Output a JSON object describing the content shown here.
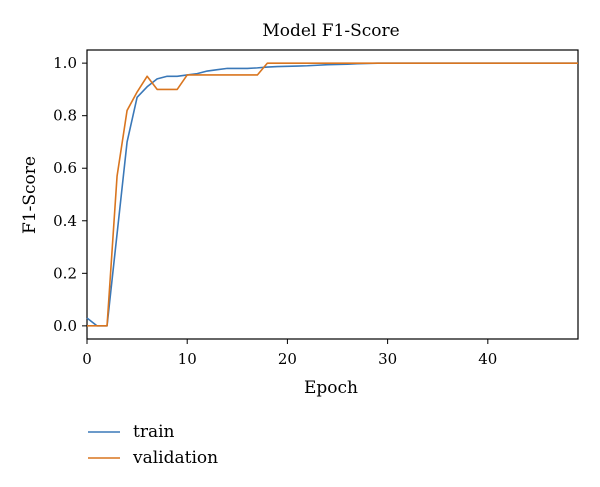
{
  "chart_data": {
    "type": "line",
    "title": "Model F1-Score",
    "xlabel": "Epoch",
    "ylabel": "F1-Score",
    "xlim": [
      0,
      49
    ],
    "ylim": [
      -0.05,
      1.05
    ],
    "xticks": [
      0,
      10,
      20,
      30,
      40
    ],
    "yticks": [
      0.0,
      0.2,
      0.4,
      0.6,
      0.8,
      1.0
    ],
    "xtick_labels": [
      "0",
      "10",
      "20",
      "30",
      "40"
    ],
    "ytick_labels": [
      "0.0",
      "0.2",
      "0.4",
      "0.6",
      "0.8",
      "1.0"
    ],
    "grid": false,
    "legend_position": "below-left",
    "series": [
      {
        "name": "train",
        "color": "#3a78b8",
        "x": [
          0,
          1,
          2,
          3,
          4,
          5,
          6,
          7,
          8,
          9,
          10,
          11,
          12,
          13,
          14,
          15,
          16,
          17,
          18,
          19,
          20,
          21,
          22,
          23,
          24,
          25,
          26,
          27,
          28,
          29,
          30,
          31,
          32,
          33,
          34,
          35,
          36,
          37,
          38,
          39,
          40,
          41,
          42,
          43,
          44,
          45,
          46,
          47,
          48,
          49
        ],
        "y": [
          0.03,
          0.0,
          0.0,
          0.35,
          0.7,
          0.87,
          0.91,
          0.94,
          0.95,
          0.95,
          0.955,
          0.96,
          0.97,
          0.975,
          0.98,
          0.98,
          0.98,
          0.982,
          0.985,
          0.987,
          0.988,
          0.989,
          0.99,
          0.992,
          0.994,
          0.995,
          0.996,
          0.998,
          0.999,
          1.0,
          1.0,
          1.0,
          1.0,
          1.0,
          1.0,
          1.0,
          1.0,
          1.0,
          1.0,
          1.0,
          1.0,
          1.0,
          1.0,
          1.0,
          1.0,
          1.0,
          1.0,
          1.0,
          1.0,
          1.0
        ]
      },
      {
        "name": "validation",
        "color": "#d9751f",
        "x": [
          0,
          1,
          2,
          3,
          4,
          5,
          6,
          7,
          8,
          9,
          10,
          11,
          12,
          13,
          14,
          15,
          16,
          17,
          18,
          19,
          20,
          21,
          22,
          23,
          24,
          25,
          26,
          27,
          28,
          29,
          30,
          31,
          32,
          33,
          34,
          35,
          36,
          37,
          38,
          39,
          40,
          41,
          42,
          43,
          44,
          45,
          46,
          47,
          48,
          49
        ],
        "y": [
          0.0,
          0.0,
          0.0,
          0.57,
          0.82,
          0.89,
          0.95,
          0.9,
          0.9,
          0.9,
          0.955,
          0.955,
          0.955,
          0.955,
          0.955,
          0.955,
          0.955,
          0.955,
          1.0,
          1.0,
          1.0,
          1.0,
          1.0,
          1.0,
          1.0,
          1.0,
          1.0,
          1.0,
          1.0,
          1.0,
          1.0,
          1.0,
          1.0,
          1.0,
          1.0,
          1.0,
          1.0,
          1.0,
          1.0,
          1.0,
          1.0,
          1.0,
          1.0,
          1.0,
          1.0,
          1.0,
          1.0,
          1.0,
          1.0,
          1.0
        ]
      }
    ]
  }
}
